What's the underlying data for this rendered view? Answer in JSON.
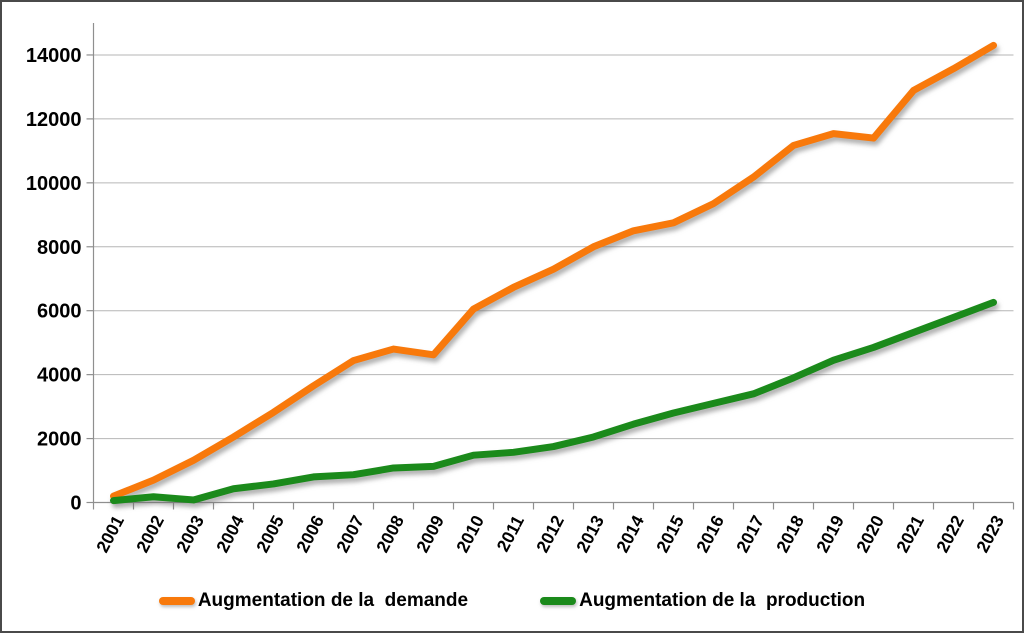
{
  "chart_data": {
    "type": "line",
    "title": "",
    "xlabel": "",
    "ylabel": "",
    "x": [
      "2001",
      "2002",
      "2003",
      "2004",
      "2005",
      "2006",
      "2007",
      "2008",
      "2009",
      "2010",
      "2011",
      "2012",
      "2013",
      "2014",
      "2015",
      "2016",
      "2017",
      "2018",
      "2019",
      "2020",
      "2021",
      "2022",
      "2023"
    ],
    "ylim": [
      0,
      15000
    ],
    "yticks": [
      0,
      2000,
      4000,
      6000,
      8000,
      10000,
      12000,
      14000
    ],
    "grid": true,
    "legend_position": "bottom",
    "series": [
      {
        "name": "Augmentation de la  demande",
        "color": "#F8790B",
        "values": [
          200,
          700,
          1320,
          2050,
          2820,
          3650,
          4440,
          4800,
          4620,
          6050,
          6730,
          7300,
          8000,
          8500,
          8750,
          9350,
          10180,
          11170,
          11540,
          11400,
          12890,
          13570,
          14300
        ]
      },
      {
        "name": "Augmentation de la  production",
        "color": "#1B8A1B",
        "values": [
          60,
          180,
          80,
          430,
          580,
          800,
          870,
          1080,
          1130,
          1480,
          1570,
          1750,
          2050,
          2450,
          2800,
          3100,
          3400,
          3900,
          4450,
          4850,
          5320,
          5790,
          6260
        ]
      }
    ]
  }
}
